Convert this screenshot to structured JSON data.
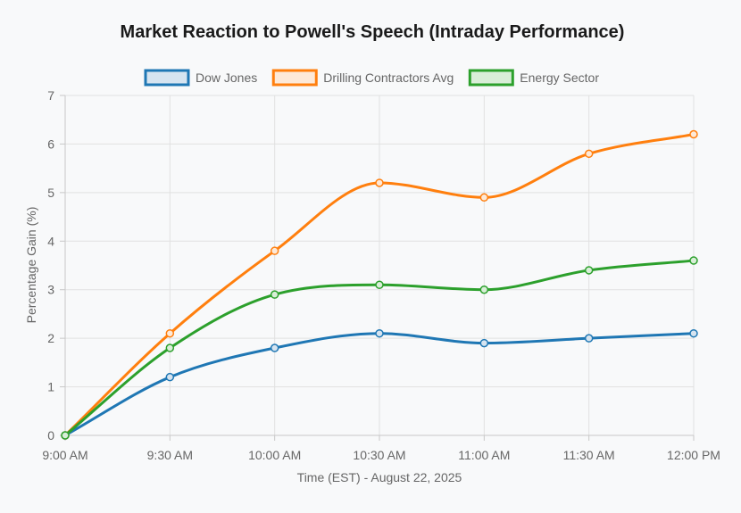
{
  "chart_data": {
    "type": "line",
    "title": "Market Reaction to Powell's Speech (Intraday Performance)",
    "xlabel": "Time (EST) - August 22, 2025",
    "ylabel": "Percentage Gain (%)",
    "categories": [
      "9:00 AM",
      "9:30 AM",
      "10:00 AM",
      "10:30 AM",
      "11:00 AM",
      "11:30 AM",
      "12:00 PM"
    ],
    "ylim": [
      0,
      7
    ],
    "yticks": [
      0,
      1,
      2,
      3,
      4,
      5,
      6,
      7
    ],
    "grid": true,
    "legend_position": "top-center",
    "series": [
      {
        "name": "Dow Jones",
        "color": "#1f77b4",
        "fill": "#d6e4f0",
        "values": [
          0,
          1.2,
          1.8,
          2.1,
          1.9,
          2.0,
          2.1
        ]
      },
      {
        "name": "Drilling Contractors Avg",
        "color": "#ff7f0e",
        "fill": "#fde9d8",
        "values": [
          0,
          2.1,
          3.8,
          5.2,
          4.9,
          5.8,
          6.2
        ]
      },
      {
        "name": "Energy Sector",
        "color": "#2ca02c",
        "fill": "#d9eed8",
        "values": [
          0,
          1.8,
          2.9,
          3.1,
          3.0,
          3.4,
          3.6
        ]
      }
    ]
  }
}
